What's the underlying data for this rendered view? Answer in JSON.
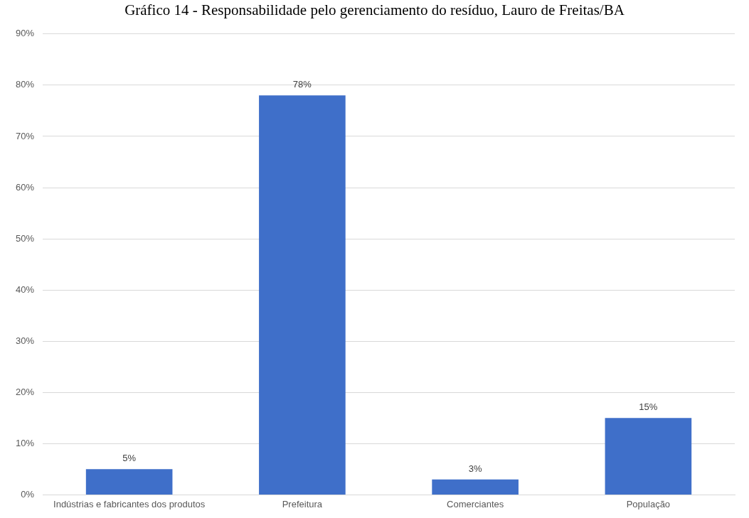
{
  "chart_data": {
    "type": "bar",
    "title": "Gráfico 14 - Responsabilidade pelo gerenciamento do resíduo, Lauro de Freitas/BA",
    "categories": [
      "Indústrias e fabricantes dos produtos",
      "Prefeitura",
      "Comerciantes",
      "População"
    ],
    "values": [
      5,
      78,
      3,
      15
    ],
    "value_labels": [
      "5%",
      "78%",
      "3%",
      "15%"
    ],
    "color": "#3f6fc9",
    "ylim": [
      0,
      90
    ],
    "yticks": [
      {
        "value": 0,
        "label": "0%"
      },
      {
        "value": 10,
        "label": "10%"
      },
      {
        "value": 20,
        "label": "20%"
      },
      {
        "value": 30,
        "label": "30%"
      },
      {
        "value": 40,
        "label": "40%"
      },
      {
        "value": 50,
        "label": "50%"
      },
      {
        "value": 60,
        "label": "60%"
      },
      {
        "value": 70,
        "label": "70%"
      },
      {
        "value": 80,
        "label": "80%"
      },
      {
        "value": 90,
        "label": "90%"
      }
    ],
    "grid": "y",
    "legend": false
  }
}
